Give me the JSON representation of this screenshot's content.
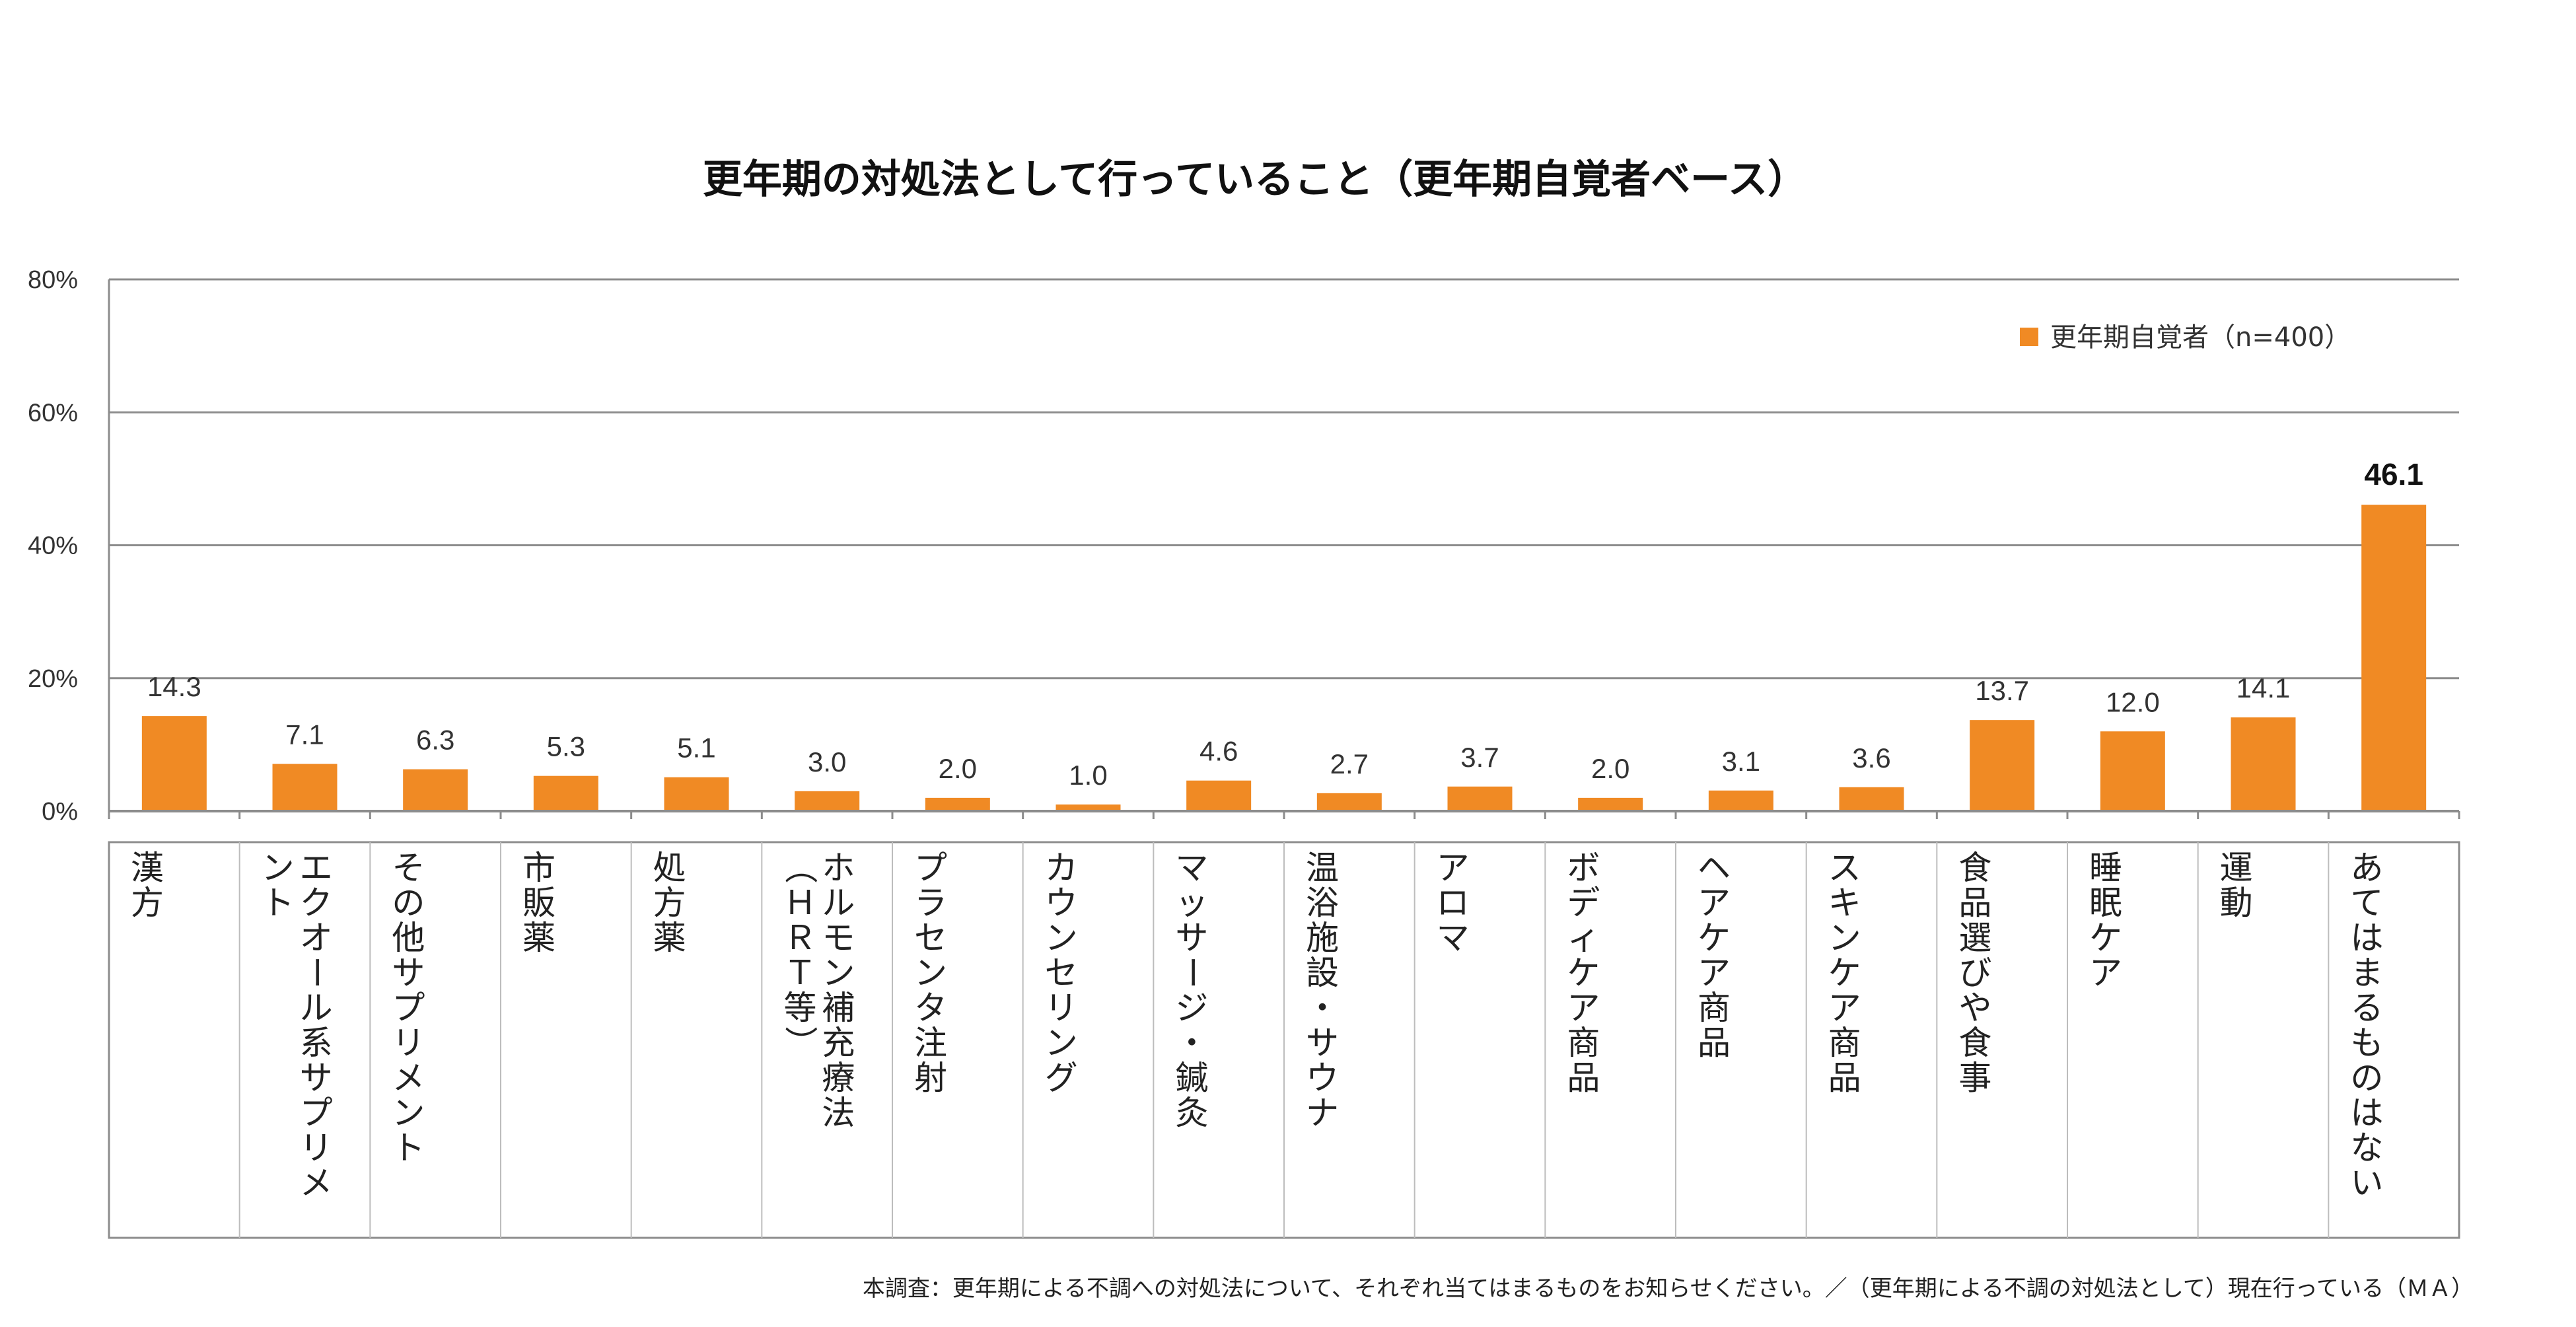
{
  "chart_data": {
    "type": "bar",
    "title": "更年期の対処法として行っていること（更年期自覚者ベース）",
    "y_ticks": [
      "0%",
      "20%",
      "40%",
      "60%",
      "80%"
    ],
    "ylim": [
      0,
      80
    ],
    "grid": true,
    "legend_position": "top-right",
    "series": [
      {
        "name": "更年期自覚者（n=400）",
        "color": "#F08A24",
        "values": [
          14.3,
          7.1,
          6.3,
          5.3,
          5.1,
          3.0,
          2.0,
          1.0,
          4.6,
          2.7,
          3.7,
          2.0,
          3.1,
          3.6,
          13.7,
          12.0,
          14.1,
          46.1
        ],
        "value_labels": [
          "14.3",
          "7.1",
          "6.3",
          "5.3",
          "5.1",
          "3.0",
          "2.0",
          "1.0",
          "4.6",
          "2.7",
          "3.7",
          "2.0",
          "3.1",
          "3.6",
          "13.7",
          "12.0",
          "14.1",
          "46.1"
        ]
      }
    ],
    "highlight_index": 17,
    "categories": [
      "漢方",
      "エクオール系サプリメント",
      "その他サプリメント",
      "市販薬",
      "処方薬",
      "ホルモン補充療法（ＨＲＴ等）",
      "プラセンタ注射",
      "カウンセリング",
      "マッサージ・鍼灸",
      "温浴施設・サウナ",
      "アロマ",
      "ボディケア商品",
      "ヘアケア商品",
      "スキンケア商品",
      "食品選びや食事",
      "睡眠ケア",
      "運動",
      "あてはまるものはない"
    ],
    "category_lines": [
      [
        "漢方"
      ],
      [
        "エクオール系サプリメ",
        "ント"
      ],
      [
        "その他サプリメント"
      ],
      [
        "市販薬"
      ],
      [
        "処方薬"
      ],
      [
        "ホルモン補充療法",
        "（ＨＲＴ等）"
      ],
      [
        "プラセンタ注射"
      ],
      [
        "カウンセリング"
      ],
      [
        "マッサージ・鍼灸"
      ],
      [
        "温浴施設・サウナ"
      ],
      [
        "アロマ"
      ],
      [
        "ボディケア商品"
      ],
      [
        "ヘアケア商品"
      ],
      [
        "スキンケア商品"
      ],
      [
        "食品選びや食事"
      ],
      [
        "睡眠ケア"
      ],
      [
        "運動"
      ],
      [
        "あてはまるものはない"
      ]
    ]
  },
  "footnote": "本調査：更年期による不調への対処法について、それぞれ当てはまるものをお知らせください。／（更年期による不調の対処法として）現在行っている（ＭＡ）"
}
